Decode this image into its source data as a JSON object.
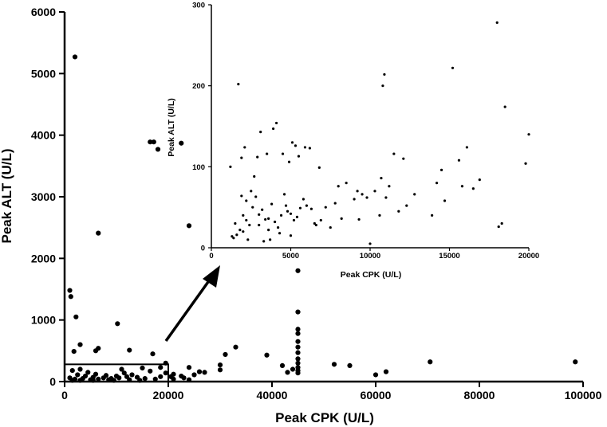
{
  "chart_data": [
    {
      "type": "scatter",
      "xlabel": "Peak CPK (U/L)",
      "ylabel": "Peak ALT (U/L)",
      "xlim": [
        0,
        100000
      ],
      "ylim": [
        0,
        6000
      ],
      "x_ticks": [
        "0",
        "20000",
        "40000",
        "60000",
        "80000",
        "100000"
      ],
      "y_ticks": [
        "0",
        "1000",
        "2000",
        "3000",
        "4000",
        "5000",
        "6000"
      ],
      "highlight_box": {
        "x": [
          0,
          20000
        ],
        "y": [
          0,
          280
        ]
      },
      "points": [
        [
          2000,
          5270
        ],
        [
          16500,
          3890
        ],
        [
          17200,
          3890
        ],
        [
          18000,
          3770
        ],
        [
          22500,
          3870
        ],
        [
          6500,
          2410
        ],
        [
          24000,
          2530
        ],
        [
          1000,
          1480
        ],
        [
          1200,
          1380
        ],
        [
          2200,
          1050
        ],
        [
          10200,
          940
        ],
        [
          45000,
          1800
        ],
        [
          45000,
          1130
        ],
        [
          45000,
          850
        ],
        [
          45000,
          780
        ],
        [
          45000,
          650
        ],
        [
          45000,
          560
        ],
        [
          45000,
          470
        ],
        [
          45000,
          370
        ],
        [
          45000,
          300
        ],
        [
          45000,
          230
        ],
        [
          45000,
          180
        ],
        [
          45000,
          140
        ],
        [
          44000,
          200
        ],
        [
          43000,
          150
        ],
        [
          3000,
          600
        ],
        [
          6000,
          500
        ],
        [
          6500,
          540
        ],
        [
          12500,
          510
        ],
        [
          17000,
          450
        ],
        [
          1800,
          490
        ],
        [
          33000,
          560
        ],
        [
          31000,
          440
        ],
        [
          39000,
          430
        ],
        [
          42000,
          260
        ],
        [
          30000,
          270
        ],
        [
          30000,
          190
        ],
        [
          52000,
          280
        ],
        [
          55000,
          260
        ],
        [
          62000,
          160
        ],
        [
          60000,
          110
        ],
        [
          70500,
          320
        ],
        [
          98500,
          320
        ],
        [
          24000,
          230
        ],
        [
          26000,
          160
        ],
        [
          21000,
          120
        ],
        [
          22500,
          90
        ],
        [
          25000,
          110
        ],
        [
          27000,
          150
        ],
        [
          23000,
          60
        ],
        [
          21000,
          40
        ],
        [
          24000,
          30
        ],
        [
          20500,
          80
        ],
        [
          19500,
          300
        ],
        [
          18500,
          230
        ],
        [
          1500,
          180
        ],
        [
          3000,
          200
        ],
        [
          4500,
          150
        ],
        [
          6000,
          120
        ],
        [
          8000,
          100
        ],
        [
          10000,
          90
        ],
        [
          11500,
          140
        ],
        [
          13000,
          110
        ],
        [
          15000,
          220
        ],
        [
          16500,
          170
        ],
        [
          2500,
          110
        ],
        [
          4000,
          90
        ],
        [
          5500,
          70
        ],
        [
          7500,
          60
        ],
        [
          9000,
          50
        ],
        [
          12000,
          80
        ],
        [
          14000,
          70
        ],
        [
          17500,
          40
        ],
        [
          1000,
          60
        ],
        [
          2000,
          40
        ],
        [
          3500,
          50
        ],
        [
          5000,
          30
        ],
        [
          6500,
          40
        ],
        [
          8500,
          30
        ],
        [
          10500,
          60
        ],
        [
          12500,
          30
        ],
        [
          15500,
          50
        ],
        [
          18500,
          80
        ],
        [
          19500,
          140
        ],
        [
          1500,
          20
        ],
        [
          3000,
          20
        ],
        [
          5500,
          20
        ],
        [
          9500,
          20
        ],
        [
          14500,
          20
        ],
        [
          11000,
          200
        ]
      ]
    },
    {
      "type": "scatter",
      "xlabel": "Peak CPK (U/L)",
      "ylabel": "Peak ALT (U/L)",
      "xlim": [
        0,
        20000
      ],
      "ylim": [
        0,
        300
      ],
      "x_ticks": [
        "0",
        "5000",
        "10000",
        "15000",
        "20000"
      ],
      "y_ticks": [
        "0",
        "100",
        "200",
        "300"
      ],
      "points": [
        [
          1200,
          100
        ],
        [
          1500,
          30
        ],
        [
          1300,
          14
        ],
        [
          1800,
          22
        ],
        [
          2000,
          40
        ],
        [
          2200,
          34
        ],
        [
          2400,
          28
        ],
        [
          2600,
          50
        ],
        [
          2800,
          63
        ],
        [
          3000,
          41
        ],
        [
          3200,
          47
        ],
        [
          3400,
          35
        ],
        [
          3600,
          22
        ],
        [
          3800,
          54
        ],
        [
          4000,
          32
        ],
        [
          4200,
          25
        ],
        [
          4400,
          40
        ],
        [
          4600,
          66
        ],
        [
          4800,
          45
        ],
        [
          5000,
          42
        ],
        [
          5200,
          34
        ],
        [
          5400,
          38
        ],
        [
          5600,
          49
        ],
        [
          5800,
          60
        ],
        [
          6000,
          52
        ],
        [
          6300,
          48
        ],
        [
          6600,
          28
        ],
        [
          6900,
          34
        ],
        [
          7200,
          50
        ],
        [
          7500,
          25
        ],
        [
          1700,
          202
        ],
        [
          1900,
          111
        ],
        [
          2100,
          124
        ],
        [
          2500,
          70
        ],
        [
          2700,
          88
        ],
        [
          2900,
          112
        ],
        [
          3100,
          143
        ],
        [
          3500,
          116
        ],
        [
          3900,
          147
        ],
        [
          4100,
          154
        ],
        [
          4500,
          116
        ],
        [
          4900,
          106
        ],
        [
          5100,
          130
        ],
        [
          5300,
          126
        ],
        [
          5500,
          113
        ],
        [
          5900,
          124
        ],
        [
          6200,
          123
        ],
        [
          6800,
          99
        ],
        [
          1600,
          16
        ],
        [
          2300,
          10
        ],
        [
          3300,
          8
        ],
        [
          3700,
          10
        ],
        [
          4300,
          18
        ],
        [
          2000,
          20
        ],
        [
          1400,
          12
        ],
        [
          8000,
          76
        ],
        [
          8500,
          80
        ],
        [
          9000,
          60
        ],
        [
          9200,
          70
        ],
        [
          9500,
          66
        ],
        [
          9800,
          62
        ],
        [
          10000,
          5
        ],
        [
          10300,
          70
        ],
        [
          10600,
          40
        ],
        [
          10700,
          86
        ],
        [
          10800,
          200
        ],
        [
          10900,
          214
        ],
        [
          11000,
          62
        ],
        [
          11200,
          76
        ],
        [
          12100,
          110
        ],
        [
          12300,
          52
        ],
        [
          12800,
          66
        ],
        [
          13900,
          40
        ],
        [
          14200,
          80
        ],
        [
          14500,
          96
        ],
        [
          14700,
          58
        ],
        [
          15200,
          222
        ],
        [
          15600,
          108
        ],
        [
          15800,
          76
        ],
        [
          16100,
          124
        ],
        [
          16500,
          73
        ],
        [
          16900,
          84
        ],
        [
          18000,
          278
        ],
        [
          18100,
          26
        ],
        [
          18300,
          30
        ],
        [
          18500,
          174
        ],
        [
          19800,
          104
        ],
        [
          20000,
          140
        ],
        [
          8200,
          36
        ],
        [
          9300,
          35
        ],
        [
          11500,
          116
        ],
        [
          11800,
          45
        ],
        [
          7800,
          55
        ],
        [
          6500,
          30
        ],
        [
          3000,
          28
        ],
        [
          5000,
          15
        ],
        [
          3600,
          36
        ],
        [
          4700,
          52
        ],
        [
          2200,
          58
        ],
        [
          1900,
          64
        ]
      ]
    }
  ]
}
